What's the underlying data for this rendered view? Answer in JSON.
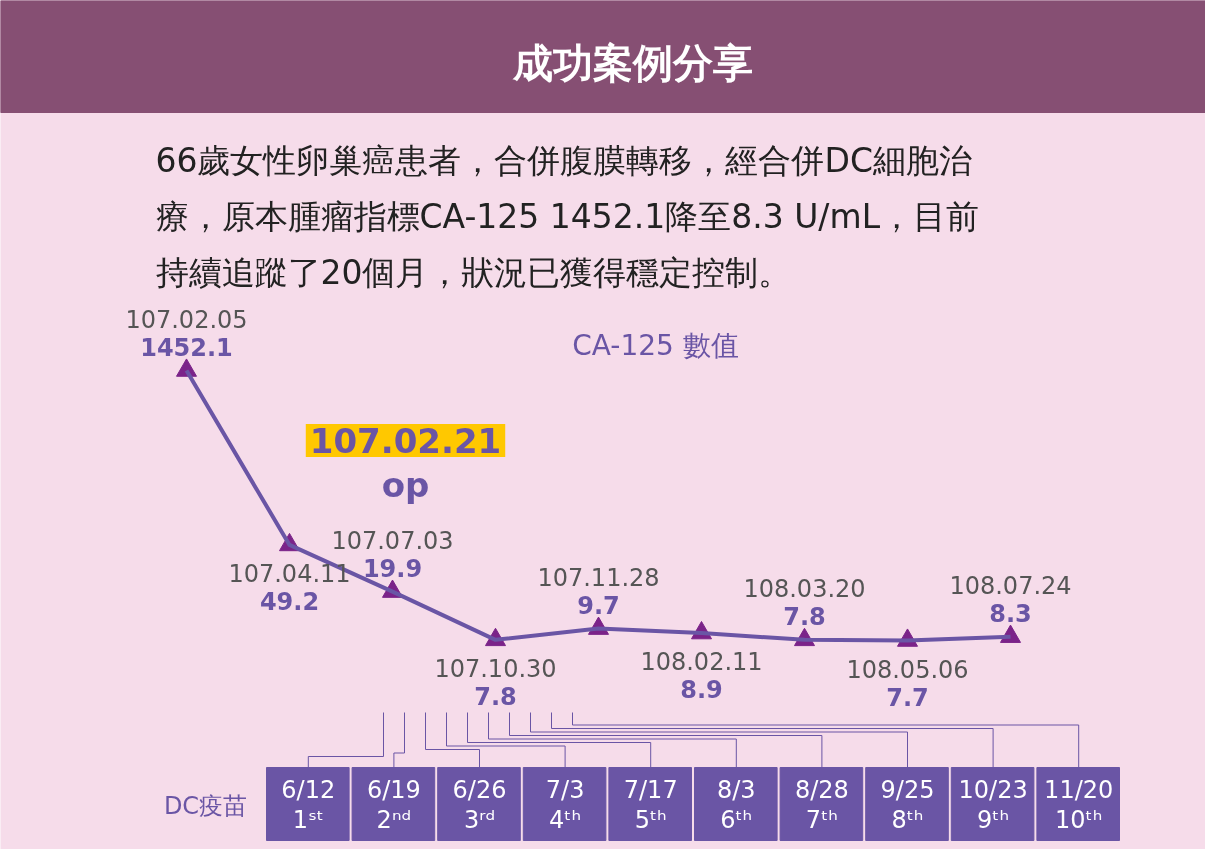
{
  "chart_data": {
    "type": "line",
    "title": "成功案例分享",
    "subtitle": "66歲女性卵巢癌患者，合併腹膜轉移，經合併DC細胞治療，原本腫瘤指標CA-125 1452.1降至8.3 U/mL，目前持續追蹤了20個月，狀況已獲得穩定控制。",
    "categories": [
      "107.02.05",
      "107.04.11",
      "107.07.03",
      "107.10.30",
      "107.11.28",
      "108.02.11",
      "108.03.20",
      "108.05.06",
      "108.07.24"
    ],
    "series": [
      {
        "color": "#6a55a5",
        "values": [
          1452.1,
          49.2,
          19.9,
          7.8,
          9.7,
          8.9,
          7.8,
          7.7,
          8.3
        ]
      }
    ],
    "log": true,
    "marker": "triangle",
    "data_labels": true,
    "tick_labels": false,
    "annotations": [
      "CA-125 數值",
      "107.02.21\nop",
      "DC疫苗",
      "6/12\n1ˢᵗ",
      "6/19\n2ⁿᵈ",
      "6/26\n3ʳᵈ",
      "7/3\n4ᵗʰ",
      "7/17\n5ᵗʰ",
      "8/3\n6ᵗʰ",
      "8/28\n7ᵗʰ",
      "9/25\n8ᵗʰ",
      "10/23\n9ᵗʰ",
      "11/20\n10ᵗʰ"
    ]
  }
}
